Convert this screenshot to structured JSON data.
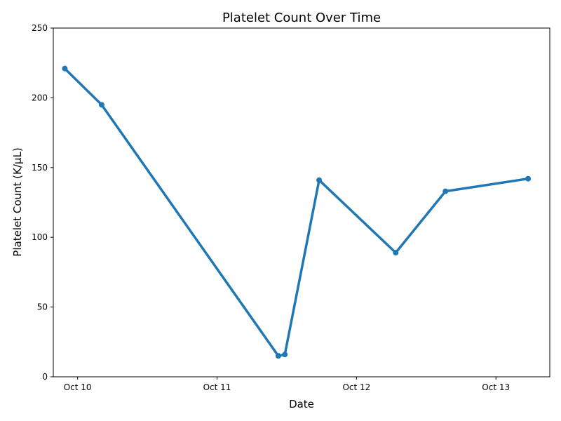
{
  "chart_data": {
    "type": "line",
    "title": "Platelet Count Over Time",
    "xlabel": "Date",
    "ylabel": "Platelet Count (K/µL)",
    "xlim": [
      "2023-10-09T19:49",
      "2023-10-13T09:16"
    ],
    "ylim": [
      0,
      250
    ],
    "x_ticks": [
      {
        "value": "2023-10-10T00:00",
        "label": "Oct 10"
      },
      {
        "value": "2023-10-11T00:00",
        "label": "Oct 11"
      },
      {
        "value": "2023-10-12T00:00",
        "label": "Oct 12"
      },
      {
        "value": "2023-10-13T00:00",
        "label": "Oct 13"
      }
    ],
    "y_ticks": [
      0,
      50,
      100,
      150,
      200,
      250
    ],
    "grid": false,
    "series": [
      {
        "color": "#1f77b4",
        "points": [
          {
            "x": "2023-10-09T21:48",
            "y": 221
          },
          {
            "x": "2023-10-10T04:08",
            "y": 195
          },
          {
            "x": "2023-10-11T10:33",
            "y": 15
          },
          {
            "x": "2023-10-11T11:40",
            "y": 16
          },
          {
            "x": "2023-10-11T17:34",
            "y": 141
          },
          {
            "x": "2023-10-12T06:45",
            "y": 89
          },
          {
            "x": "2023-10-12T15:19",
            "y": 133
          },
          {
            "x": "2023-10-13T05:32",
            "y": 142
          }
        ]
      }
    ]
  }
}
